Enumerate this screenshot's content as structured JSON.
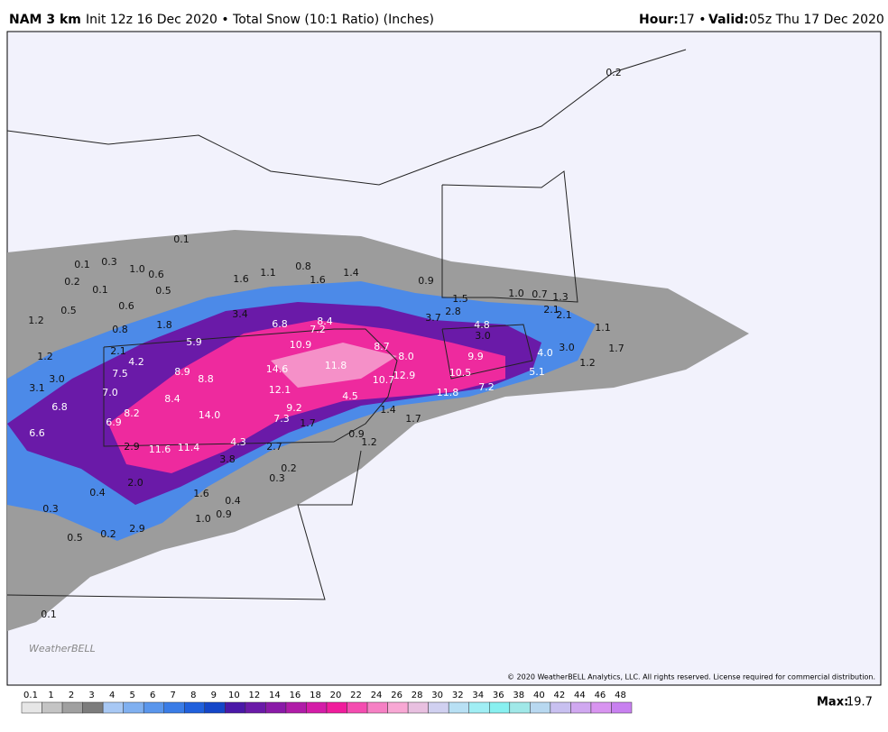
{
  "header": {
    "model": "NAM 3 km",
    "description": "Init 12z 16 Dec 2020 • Total Snow (10:1 Ratio) (Inches)",
    "hour_label": "Hour:",
    "hour": "17 •",
    "valid_label": "Valid:",
    "valid": "05z Thu 17 Dec 2020"
  },
  "map_labels": [
    "0.2",
    "0.1",
    "0.1",
    "0.3",
    "1.0",
    "0.6",
    "0.2",
    "0.1",
    "0.5",
    "1.6",
    "1.1",
    "0.8",
    "1.4",
    "1.6",
    "0.9",
    "1.5",
    "1.0",
    "0.7",
    "1.3",
    "0.5",
    "0.6",
    "3.4",
    "6.8",
    "7.2",
    "8.4",
    "3.7",
    "2.8",
    "4.8",
    "2.1",
    "2.1",
    "1.2",
    "0.8",
    "1.8",
    "3.0",
    "1.1",
    "5.9",
    "10.9",
    "8.7",
    "8.0",
    "9.9",
    "4.0",
    "3.0",
    "1.7",
    "1.2",
    "2.1",
    "4.2",
    "11.8",
    "1.2",
    "7.5",
    "8.9",
    "8.8",
    "14.6",
    "10.7",
    "12.9",
    "10.5",
    "5.1",
    "3.0",
    "3.1",
    "7.0",
    "12.1",
    "11.8",
    "7.2",
    "8.4",
    "4.5",
    "6.8",
    "8.2",
    "9.2",
    "1.4",
    "1.7",
    "14.0",
    "7.3",
    "1.7",
    "6.9",
    "6.6",
    "0.9",
    "2.9",
    "11.6",
    "11.4",
    "4.3",
    "2.7",
    "1.2",
    "3.8",
    "0.2",
    "0.3",
    "2.0",
    "0.4",
    "1.6",
    "0.4",
    "0.3",
    "0.9",
    "1.0",
    "0.5",
    "0.2",
    "2.9",
    "0.1"
  ],
  "logo": "WeatherBELL",
  "copyright": "© 2020 WeatherBELL Analytics, LLC. All rights reserved. License required for commercial distribution.",
  "colorbar": {
    "ticks": [
      0.1,
      1,
      2,
      3,
      4,
      5,
      6,
      7,
      8,
      9,
      10,
      12,
      14,
      16,
      18,
      20,
      22,
      24,
      26,
      28,
      30,
      32,
      34,
      36,
      38,
      40,
      42,
      44,
      46,
      48
    ],
    "colors": [
      "#e6e6e6",
      "#c4c4c4",
      "#a0a0a0",
      "#7c7c7c",
      "#a8c8f4",
      "#80b0f0",
      "#5a96ec",
      "#3a7ce6",
      "#2060dc",
      "#1446c8",
      "#4a18a8",
      "#6a1aa8",
      "#8a1aa8",
      "#b01ca8",
      "#d41ca8",
      "#f01c9c",
      "#f44cb0",
      "#f680c4",
      "#f8a8d4",
      "#e8c0e0",
      "#d0d0f0",
      "#b8e0f4",
      "#a0eef4",
      "#88f0f0",
      "#a0e8e8",
      "#b8d8f0",
      "#c8c0f0",
      "#d0a8f0",
      "#d894f0",
      "#c880f0"
    ]
  },
  "max_label": "Max:",
  "max": 19.7
}
